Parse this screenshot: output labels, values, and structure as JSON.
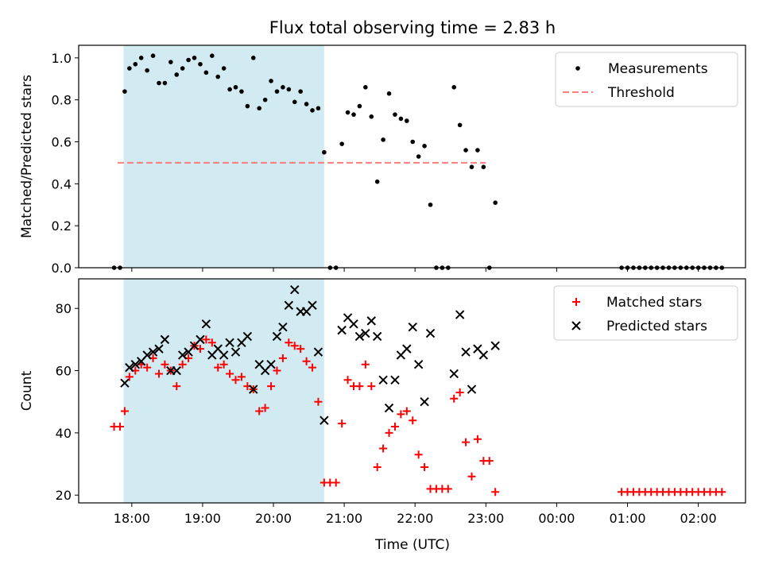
{
  "title": "Flux total observing time = 2.83 h",
  "colors": {
    "span": "#add8e6",
    "threshold": "#ff7f7f",
    "matched": "#ff0000",
    "predicted": "#000000",
    "measurements": "#000000"
  },
  "chart_data": [
    {
      "type": "scatter",
      "ylabel": "Matched/Predicted stars",
      "ylim": [
        0,
        1.06
      ],
      "yticks": [
        "0.0",
        "0.2",
        "0.4",
        "0.6",
        "0.8",
        "1.0"
      ],
      "highlight_span": [
        "17:53",
        "20:43"
      ],
      "threshold": 0.5,
      "threshold_x": [
        "17:48",
        "23:00"
      ],
      "legend": [
        {
          "label": "Measurements",
          "marker": "dot",
          "color": "#000000"
        },
        {
          "label": "Threshold",
          "marker": "dash",
          "color": "#ff7f7f"
        }
      ],
      "series": [
        {
          "name": "Measurements",
          "points": [
            [
              "17:45",
              0
            ],
            [
              "17:50",
              0
            ],
            [
              "17:54",
              0.84
            ],
            [
              "17:58",
              0.95
            ],
            [
              "18:03",
              0.97
            ],
            [
              "18:08",
              1.0
            ],
            [
              "18:13",
              0.94
            ],
            [
              "18:18",
              1.01
            ],
            [
              "18:23",
              0.88
            ],
            [
              "18:28",
              0.88
            ],
            [
              "18:33",
              0.98
            ],
            [
              "18:38",
              0.92
            ],
            [
              "18:43",
              0.95
            ],
            [
              "18:48",
              0.99
            ],
            [
              "18:53",
              1.0
            ],
            [
              "18:58",
              0.97
            ],
            [
              "19:03",
              0.93
            ],
            [
              "19:08",
              1.01
            ],
            [
              "19:13",
              0.91
            ],
            [
              "19:18",
              0.95
            ],
            [
              "19:23",
              0.85
            ],
            [
              "19:28",
              0.86
            ],
            [
              "19:33",
              0.84
            ],
            [
              "19:38",
              0.77
            ],
            [
              "19:43",
              1.0
            ],
            [
              "19:48",
              0.76
            ],
            [
              "19:53",
              0.8
            ],
            [
              "19:58",
              0.89
            ],
            [
              "20:03",
              0.84
            ],
            [
              "20:08",
              0.86
            ],
            [
              "20:13",
              0.85
            ],
            [
              "20:18",
              0.79
            ],
            [
              "20:23",
              0.84
            ],
            [
              "20:28",
              0.78
            ],
            [
              "20:33",
              0.75
            ],
            [
              "20:38",
              0.76
            ],
            [
              "20:43",
              0.55
            ],
            [
              "20:48",
              0
            ],
            [
              "20:53",
              0
            ],
            [
              "20:58",
              0.59
            ],
            [
              "21:03",
              0.74
            ],
            [
              "21:08",
              0.73
            ],
            [
              "21:13",
              0.77
            ],
            [
              "21:18",
              0.86
            ],
            [
              "21:23",
              0.72
            ],
            [
              "21:28",
              0.41
            ],
            [
              "21:33",
              0.61
            ],
            [
              "21:38",
              0.83
            ],
            [
              "21:43",
              0.73
            ],
            [
              "21:48",
              0.71
            ],
            [
              "21:53",
              0.7
            ],
            [
              "21:58",
              0.6
            ],
            [
              "22:03",
              0.53
            ],
            [
              "22:08",
              0.58
            ],
            [
              "22:13",
              0.3
            ],
            [
              "22:18",
              0
            ],
            [
              "22:23",
              0
            ],
            [
              "22:28",
              0
            ],
            [
              "22:33",
              0.86
            ],
            [
              "22:38",
              0.68
            ],
            [
              "22:43",
              0.56
            ],
            [
              "22:48",
              0.48
            ],
            [
              "22:53",
              0.56
            ],
            [
              "22:58",
              0.48
            ],
            [
              "23:03",
              0
            ],
            [
              "23:08",
              0.31
            ],
            [
              "00:55",
              0
            ],
            [
              "01:00",
              0
            ],
            [
              "01:05",
              0
            ],
            [
              "01:10",
              0
            ],
            [
              "01:15",
              0
            ],
            [
              "01:20",
              0
            ],
            [
              "01:25",
              0
            ],
            [
              "01:30",
              0
            ],
            [
              "01:35",
              0
            ],
            [
              "01:40",
              0
            ],
            [
              "01:45",
              0
            ],
            [
              "01:50",
              0
            ],
            [
              "01:55",
              0
            ],
            [
              "02:00",
              0
            ],
            [
              "02:05",
              0
            ],
            [
              "02:10",
              0
            ],
            [
              "02:15",
              0
            ],
            [
              "02:20",
              0
            ]
          ]
        }
      ]
    },
    {
      "type": "scatter",
      "xlabel": "Time (UTC)",
      "ylabel": "Count",
      "ylim": [
        17.5,
        89.5
      ],
      "yticks": [
        "20",
        "40",
        "60",
        "80"
      ],
      "xticks": [
        "18:00",
        "19:00",
        "20:00",
        "21:00",
        "22:00",
        "23:00",
        "00:00",
        "01:00",
        "02:00"
      ],
      "xlim": [
        "17:15",
        "02:40"
      ],
      "highlight_span": [
        "17:53",
        "20:43"
      ],
      "legend": [
        {
          "label": "Matched stars",
          "marker": "plus",
          "color": "#ff0000"
        },
        {
          "label": "Predicted stars",
          "marker": "x",
          "color": "#000000"
        }
      ],
      "series": [
        {
          "name": "Matched stars",
          "points": [
            [
              "17:45",
              42
            ],
            [
              "17:50",
              42
            ],
            [
              "17:54",
              47
            ],
            [
              "17:58",
              58
            ],
            [
              "18:03",
              60
            ],
            [
              "18:08",
              62
            ],
            [
              "18:13",
              61
            ],
            [
              "18:18",
              64
            ],
            [
              "18:23",
              59
            ],
            [
              "18:28",
              62
            ],
            [
              "18:33",
              60
            ],
            [
              "18:38",
              55
            ],
            [
              "18:43",
              62
            ],
            [
              "18:48",
              64
            ],
            [
              "18:53",
              68
            ],
            [
              "18:58",
              67
            ],
            [
              "19:03",
              70
            ],
            [
              "19:08",
              69
            ],
            [
              "19:13",
              61
            ],
            [
              "19:18",
              62
            ],
            [
              "19:23",
              59
            ],
            [
              "19:28",
              57
            ],
            [
              "19:33",
              58
            ],
            [
              "19:38",
              55
            ],
            [
              "19:43",
              54
            ],
            [
              "19:48",
              47
            ],
            [
              "19:53",
              48
            ],
            [
              "19:58",
              55
            ],
            [
              "20:03",
              60
            ],
            [
              "20:08",
              64
            ],
            [
              "20:13",
              69
            ],
            [
              "20:18",
              68
            ],
            [
              "20:23",
              67
            ],
            [
              "20:28",
              63
            ],
            [
              "20:33",
              61
            ],
            [
              "20:38",
              50
            ],
            [
              "20:43",
              24
            ],
            [
              "20:48",
              24
            ],
            [
              "20:53",
              24
            ],
            [
              "20:58",
              43
            ],
            [
              "21:03",
              57
            ],
            [
              "21:08",
              55
            ],
            [
              "21:13",
              55
            ],
            [
              "21:18",
              62
            ],
            [
              "21:23",
              55
            ],
            [
              "21:28",
              29
            ],
            [
              "21:33",
              35
            ],
            [
              "21:38",
              40
            ],
            [
              "21:43",
              42
            ],
            [
              "21:48",
              46
            ],
            [
              "21:53",
              47
            ],
            [
              "21:58",
              44
            ],
            [
              "22:03",
              33
            ],
            [
              "22:08",
              29
            ],
            [
              "22:13",
              22
            ],
            [
              "22:18",
              22
            ],
            [
              "22:23",
              22
            ],
            [
              "22:28",
              22
            ],
            [
              "22:33",
              51
            ],
            [
              "22:38",
              53
            ],
            [
              "22:43",
              37
            ],
            [
              "22:48",
              26
            ],
            [
              "22:53",
              38
            ],
            [
              "22:58",
              31
            ],
            [
              "23:03",
              31
            ],
            [
              "23:08",
              21
            ],
            [
              "00:55",
              21
            ],
            [
              "01:00",
              21
            ],
            [
              "01:05",
              21
            ],
            [
              "01:10",
              21
            ],
            [
              "01:15",
              21
            ],
            [
              "01:20",
              21
            ],
            [
              "01:25",
              21
            ],
            [
              "01:30",
              21
            ],
            [
              "01:35",
              21
            ],
            [
              "01:40",
              21
            ],
            [
              "01:45",
              21
            ],
            [
              "01:50",
              21
            ],
            [
              "01:55",
              21
            ],
            [
              "02:00",
              21
            ],
            [
              "02:05",
              21
            ],
            [
              "02:10",
              21
            ],
            [
              "02:15",
              21
            ],
            [
              "02:20",
              21
            ]
          ]
        },
        {
          "name": "Predicted stars",
          "points": [
            [
              "17:54",
              56
            ],
            [
              "17:58",
              61
            ],
            [
              "18:03",
              62
            ],
            [
              "18:08",
              63
            ],
            [
              "18:13",
              65
            ],
            [
              "18:18",
              66
            ],
            [
              "18:23",
              67
            ],
            [
              "18:28",
              70
            ],
            [
              "18:33",
              60
            ],
            [
              "18:38",
              60
            ],
            [
              "18:43",
              65
            ],
            [
              "18:48",
              66
            ],
            [
              "18:53",
              68
            ],
            [
              "18:58",
              70
            ],
            [
              "19:03",
              75
            ],
            [
              "19:08",
              65
            ],
            [
              "19:13",
              67
            ],
            [
              "19:18",
              65
            ],
            [
              "19:23",
              69
            ],
            [
              "19:28",
              66
            ],
            [
              "19:33",
              69
            ],
            [
              "19:38",
              71
            ],
            [
              "19:43",
              54
            ],
            [
              "19:48",
              62
            ],
            [
              "19:53",
              60
            ],
            [
              "19:58",
              62
            ],
            [
              "20:03",
              71
            ],
            [
              "20:08",
              74
            ],
            [
              "20:13",
              81
            ],
            [
              "20:18",
              86
            ],
            [
              "20:23",
              79
            ],
            [
              "20:28",
              79
            ],
            [
              "20:33",
              81
            ],
            [
              "20:38",
              66
            ],
            [
              "20:43",
              44
            ],
            [
              "20:58",
              73
            ],
            [
              "21:03",
              77
            ],
            [
              "21:08",
              75
            ],
            [
              "21:13",
              71
            ],
            [
              "21:18",
              72
            ],
            [
              "21:23",
              76
            ],
            [
              "21:28",
              71
            ],
            [
              "21:33",
              57
            ],
            [
              "21:38",
              48
            ],
            [
              "21:43",
              57
            ],
            [
              "21:48",
              65
            ],
            [
              "21:53",
              67
            ],
            [
              "21:58",
              74
            ],
            [
              "22:03",
              62
            ],
            [
              "22:08",
              50
            ],
            [
              "22:13",
              72
            ],
            [
              "22:33",
              59
            ],
            [
              "22:38",
              78
            ],
            [
              "22:43",
              66
            ],
            [
              "22:48",
              54
            ],
            [
              "22:53",
              67
            ],
            [
              "22:58",
              65
            ],
            [
              "23:08",
              68
            ]
          ]
        }
      ]
    }
  ]
}
